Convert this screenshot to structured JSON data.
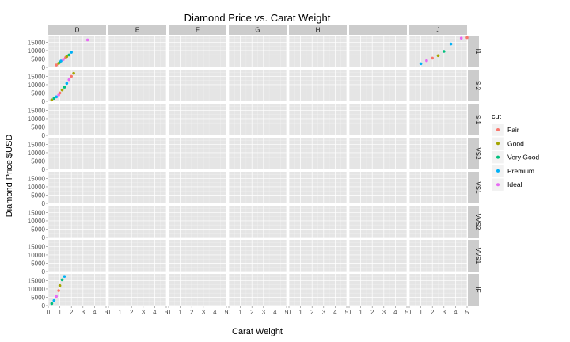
{
  "chart_data": {
    "type": "scatter",
    "title": "Diamond Price vs. Carat Weight",
    "xlabel": "Carat Weight",
    "ylabel": "Diamond Price $USD",
    "xlim": [
      0,
      5
    ],
    "ylim": [
      0,
      19000
    ],
    "x_ticks": [
      0,
      1,
      2,
      3,
      4,
      5
    ],
    "y_ticks": [
      0,
      5000,
      10000,
      15000
    ],
    "x_tick_labels": [
      "0",
      "1",
      "2",
      "3",
      "4",
      "5"
    ],
    "y_tick_labels": [
      "0",
      "5000",
      "10000",
      "15000"
    ],
    "facet_cols": [
      "D",
      "E",
      "F",
      "G",
      "H",
      "I",
      "J"
    ],
    "facet_rows": [
      "I1",
      "SI2",
      "SI1",
      "VS2",
      "VS1",
      "VVS2",
      "VVS1",
      "IF"
    ],
    "grid": true,
    "legend": {
      "title": "cut",
      "position": "right",
      "entries": [
        {
          "name": "Fair",
          "color": "#F8766D"
        },
        {
          "name": "Good",
          "color": "#A3A500"
        },
        {
          "name": "Very Good",
          "color": "#00BF7D"
        },
        {
          "name": "Premium",
          "color": "#00B0F6"
        },
        {
          "name": "Ideal",
          "color": "#E76BF3"
        }
      ]
    },
    "series": [
      {
        "name": "D / I1",
        "points": [
          [
            0.7,
            1400
          ],
          [
            0.9,
            2400
          ],
          [
            1.0,
            3000
          ],
          [
            1.1,
            3800
          ],
          [
            1.3,
            4700
          ],
          [
            1.5,
            5800
          ],
          [
            1.6,
            6500
          ],
          [
            1.8,
            7400
          ],
          [
            2.0,
            9000
          ],
          [
            3.4,
            16400
          ]
        ]
      },
      {
        "name": "D / SI2",
        "points": [
          [
            0.3,
            800
          ],
          [
            0.5,
            1800
          ],
          [
            0.7,
            2700
          ],
          [
            0.9,
            3800
          ],
          [
            1.0,
            5000
          ],
          [
            1.2,
            6800
          ],
          [
            1.4,
            8500
          ],
          [
            1.6,
            10800
          ],
          [
            1.8,
            13000
          ],
          [
            2.0,
            15000
          ],
          [
            2.2,
            16800
          ]
        ]
      },
      {
        "name": "D / IF",
        "points": [
          [
            0.3,
            1200
          ],
          [
            0.5,
            3000
          ],
          [
            0.7,
            5500
          ],
          [
            0.9,
            9000
          ],
          [
            1.0,
            12000
          ],
          [
            1.2,
            15500
          ],
          [
            1.4,
            17500
          ]
        ]
      },
      {
        "name": "J / I1",
        "points": [
          [
            1.0,
            2200
          ],
          [
            1.5,
            4000
          ],
          [
            2.0,
            5500
          ],
          [
            2.5,
            7000
          ],
          [
            3.0,
            9500
          ],
          [
            3.6,
            14000
          ],
          [
            4.5,
            17500
          ],
          [
            5.0,
            17800
          ]
        ]
      }
    ]
  }
}
